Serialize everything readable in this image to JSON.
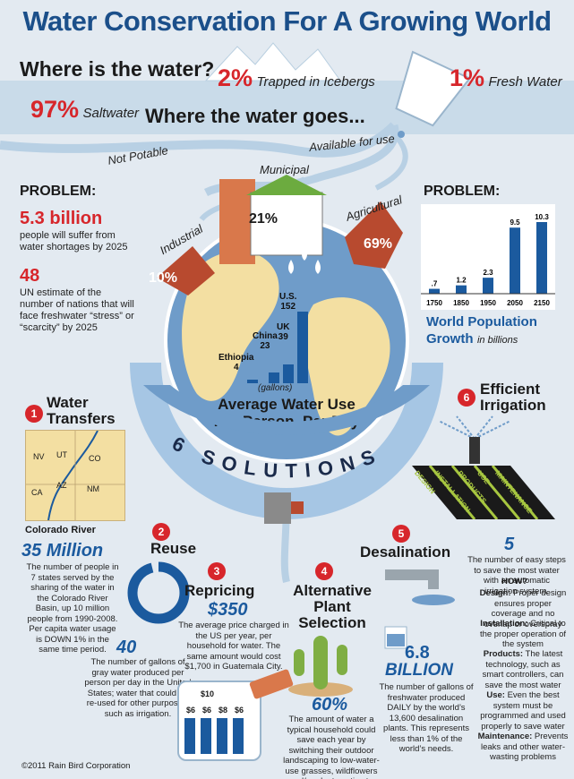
{
  "title": "Water Conservation For A Growing World",
  "where_question": "Where is the water?",
  "distribution": [
    {
      "pct": "2%",
      "label": "Trapped in Icebergs"
    },
    {
      "pct": "1%",
      "label": "Fresh Water"
    },
    {
      "pct": "97%",
      "label": "Saltwater"
    }
  ],
  "where_goes": "Where the water goes...",
  "not_potable": "Not Potable",
  "available": "Available for use",
  "uses": [
    {
      "name": "Industrial",
      "pct": "10%"
    },
    {
      "name": "Municipal",
      "pct": "21%"
    },
    {
      "name": "Agricultural",
      "pct": "69%"
    }
  ],
  "problem_left": {
    "heading": "PROBLEM:",
    "stat1": "5.3 billion",
    "text1": "people will suffer from water shortages by 2025",
    "stat2": "48",
    "text2": "UN estimate of the number of nations that will face freshwater “stress” or “scarcity” by 2025"
  },
  "problem_right": {
    "heading": "PROBLEM:",
    "caption_main": "World Population Growth",
    "caption_unit": "in billions"
  },
  "chart_data": {
    "type": "bar",
    "categories": [
      "1750",
      "1850",
      "1950",
      "2050",
      "2150"
    ],
    "values": [
      0.7,
      1.2,
      2.3,
      9.5,
      10.3
    ],
    "value_labels": [
      ".7",
      "1.2",
      "2.3",
      "9.5",
      "10.3"
    ],
    "ylim": [
      0,
      10.3
    ]
  },
  "water_use": {
    "countries": [
      {
        "name": "Ethiopia",
        "value": 4
      },
      {
        "name": "China",
        "value": 23
      },
      {
        "name": "UK",
        "value": 39
      },
      {
        "name": "U.S.",
        "value": 152
      }
    ],
    "unit": "(gallons)",
    "title_line1": "Average Water Use",
    "title_line2": "Per Person, Per Day"
  },
  "solutions_label": "6 SOLUTIONS",
  "map_states": [
    "NV",
    "UT",
    "CO",
    "CA",
    "AZ",
    "NM"
  ],
  "solutions": {
    "s1": {
      "num": "1",
      "title1": "Water",
      "title2": "Transfers",
      "map_caption": "Colorado River",
      "stat": "35 Million",
      "text": "The number of people in 7 states served by the sharing of the water in the Colorado River Basin, up 10 million people from 1990-2008. Per capita water usage is DOWN 1% in the same time period."
    },
    "s2": {
      "num": "2",
      "title": "Reuse",
      "stat": "40",
      "text": "The number of gallons of gray water produced per person per day in the United States; water that could be re-used for other purposes, such as irrigation."
    },
    "s3": {
      "num": "3",
      "title": "Repricing",
      "stat": "$350",
      "text": "The average price charged in the US per year, per household for water. The same amount would cost $1,700 in Guatemala City.",
      "jug_values": [
        "$10",
        "$6",
        "$6",
        "$8",
        "$6"
      ]
    },
    "s4": {
      "num": "4",
      "title1": "Alternative",
      "title2": "Plant",
      "title3": "Selection",
      "stat": "60%",
      "text": "The amount of water a typical household could save each year by switching their outdoor landscaping to low-water-use grasses, wildflowers and/or plants native to the area."
    },
    "s5": {
      "num": "5",
      "title": "Desalination",
      "stat1": "6.8",
      "stat2": "BILLION",
      "text": "The number of gallons of freshwater produced DAILY by the world’s 13,600 desalination plants. This represents less than 1% of the world’s needs."
    },
    "s6": {
      "num": "6",
      "title1": "Efficient",
      "title2": "Irrigation",
      "steps": [
        "DESIGN",
        "INSTALLATION",
        "PRODUCTS",
        "USE",
        "MAINTENANCE"
      ],
      "stat": "5",
      "intro": "The number of easy steps to save the most water with an automatic irrigation system.",
      "how": "HOW?",
      "items": [
        {
          "label": "Design:",
          "text": "Proper design ensures proper coverage and no overlap or overspray"
        },
        {
          "label": "Installation:",
          "text": "Critical to the proper operation of the system"
        },
        {
          "label": "Products:",
          "text": "The latest technology, such as smart controllers, can save the most water"
        },
        {
          "label": "Use:",
          "text": "Even the best system must be programmed and used properly to save water"
        },
        {
          "label": "Maintenance:",
          "text": "Prevents leaks and other water-wasting problems"
        }
      ]
    }
  },
  "copyright": "©2011 Rain Bird Corporation",
  "colors": {
    "title_blue": "#1b4f8a",
    "stat_red": "#d7262b",
    "bar_blue": "#1b5a9e",
    "ocean": "#6f9cc9",
    "land": "#f3dfa2"
  }
}
